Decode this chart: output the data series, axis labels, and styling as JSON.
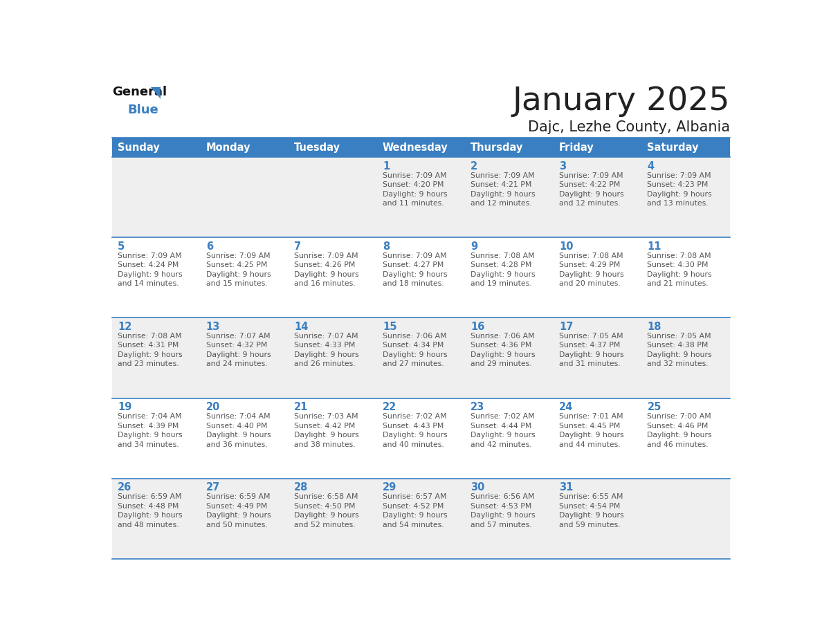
{
  "title": "January 2025",
  "subtitle": "Dajc, Lezhe County, Albania",
  "days_of_week": [
    "Sunday",
    "Monday",
    "Tuesday",
    "Wednesday",
    "Thursday",
    "Friday",
    "Saturday"
  ],
  "header_bg_color": "#3a7fc1",
  "header_text_color": "#FFFFFF",
  "odd_row_bg": "#EFEFEF",
  "even_row_bg": "#FFFFFF",
  "cell_border_color": "#3a7fc1",
  "day_number_color": "#3a7fc1",
  "info_text_color": "#555555",
  "title_color": "#222222",
  "subtitle_color": "#222222",
  "logo_general_color": "#111111",
  "logo_blue_color": "#3a7fc1",
  "calendar_data": [
    [
      {
        "day": "",
        "sunrise": "",
        "sunset": "",
        "daylight": ""
      },
      {
        "day": "",
        "sunrise": "",
        "sunset": "",
        "daylight": ""
      },
      {
        "day": "",
        "sunrise": "",
        "sunset": "",
        "daylight": ""
      },
      {
        "day": "1",
        "sunrise": "7:09 AM",
        "sunset": "4:20 PM",
        "daylight": "9 hours and 11 minutes."
      },
      {
        "day": "2",
        "sunrise": "7:09 AM",
        "sunset": "4:21 PM",
        "daylight": "9 hours and 12 minutes."
      },
      {
        "day": "3",
        "sunrise": "7:09 AM",
        "sunset": "4:22 PM",
        "daylight": "9 hours and 12 minutes."
      },
      {
        "day": "4",
        "sunrise": "7:09 AM",
        "sunset": "4:23 PM",
        "daylight": "9 hours and 13 minutes."
      }
    ],
    [
      {
        "day": "5",
        "sunrise": "7:09 AM",
        "sunset": "4:24 PM",
        "daylight": "9 hours and 14 minutes."
      },
      {
        "day": "6",
        "sunrise": "7:09 AM",
        "sunset": "4:25 PM",
        "daylight": "9 hours and 15 minutes."
      },
      {
        "day": "7",
        "sunrise": "7:09 AM",
        "sunset": "4:26 PM",
        "daylight": "9 hours and 16 minutes."
      },
      {
        "day": "8",
        "sunrise": "7:09 AM",
        "sunset": "4:27 PM",
        "daylight": "9 hours and 18 minutes."
      },
      {
        "day": "9",
        "sunrise": "7:08 AM",
        "sunset": "4:28 PM",
        "daylight": "9 hours and 19 minutes."
      },
      {
        "day": "10",
        "sunrise": "7:08 AM",
        "sunset": "4:29 PM",
        "daylight": "9 hours and 20 minutes."
      },
      {
        "day": "11",
        "sunrise": "7:08 AM",
        "sunset": "4:30 PM",
        "daylight": "9 hours and 21 minutes."
      }
    ],
    [
      {
        "day": "12",
        "sunrise": "7:08 AM",
        "sunset": "4:31 PM",
        "daylight": "9 hours and 23 minutes."
      },
      {
        "day": "13",
        "sunrise": "7:07 AM",
        "sunset": "4:32 PM",
        "daylight": "9 hours and 24 minutes."
      },
      {
        "day": "14",
        "sunrise": "7:07 AM",
        "sunset": "4:33 PM",
        "daylight": "9 hours and 26 minutes."
      },
      {
        "day": "15",
        "sunrise": "7:06 AM",
        "sunset": "4:34 PM",
        "daylight": "9 hours and 27 minutes."
      },
      {
        "day": "16",
        "sunrise": "7:06 AM",
        "sunset": "4:36 PM",
        "daylight": "9 hours and 29 minutes."
      },
      {
        "day": "17",
        "sunrise": "7:05 AM",
        "sunset": "4:37 PM",
        "daylight": "9 hours and 31 minutes."
      },
      {
        "day": "18",
        "sunrise": "7:05 AM",
        "sunset": "4:38 PM",
        "daylight": "9 hours and 32 minutes."
      }
    ],
    [
      {
        "day": "19",
        "sunrise": "7:04 AM",
        "sunset": "4:39 PM",
        "daylight": "9 hours and 34 minutes."
      },
      {
        "day": "20",
        "sunrise": "7:04 AM",
        "sunset": "4:40 PM",
        "daylight": "9 hours and 36 minutes."
      },
      {
        "day": "21",
        "sunrise": "7:03 AM",
        "sunset": "4:42 PM",
        "daylight": "9 hours and 38 minutes."
      },
      {
        "day": "22",
        "sunrise": "7:02 AM",
        "sunset": "4:43 PM",
        "daylight": "9 hours and 40 minutes."
      },
      {
        "day": "23",
        "sunrise": "7:02 AM",
        "sunset": "4:44 PM",
        "daylight": "9 hours and 42 minutes."
      },
      {
        "day": "24",
        "sunrise": "7:01 AM",
        "sunset": "4:45 PM",
        "daylight": "9 hours and 44 minutes."
      },
      {
        "day": "25",
        "sunrise": "7:00 AM",
        "sunset": "4:46 PM",
        "daylight": "9 hours and 46 minutes."
      }
    ],
    [
      {
        "day": "26",
        "sunrise": "6:59 AM",
        "sunset": "4:48 PM",
        "daylight": "9 hours and 48 minutes."
      },
      {
        "day": "27",
        "sunrise": "6:59 AM",
        "sunset": "4:49 PM",
        "daylight": "9 hours and 50 minutes."
      },
      {
        "day": "28",
        "sunrise": "6:58 AM",
        "sunset": "4:50 PM",
        "daylight": "9 hours and 52 minutes."
      },
      {
        "day": "29",
        "sunrise": "6:57 AM",
        "sunset": "4:52 PM",
        "daylight": "9 hours and 54 minutes."
      },
      {
        "day": "30",
        "sunrise": "6:56 AM",
        "sunset": "4:53 PM",
        "daylight": "9 hours and 57 minutes."
      },
      {
        "day": "31",
        "sunrise": "6:55 AM",
        "sunset": "4:54 PM",
        "daylight": "9 hours and 59 minutes."
      },
      {
        "day": "",
        "sunrise": "",
        "sunset": "",
        "daylight": ""
      }
    ]
  ]
}
